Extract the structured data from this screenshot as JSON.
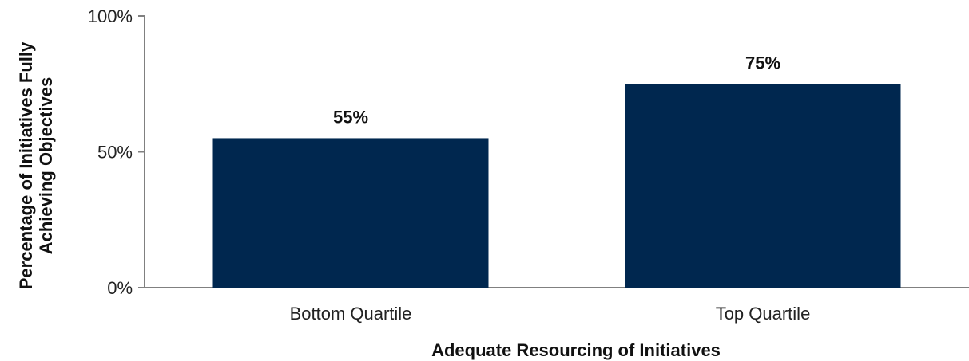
{
  "chart_data": {
    "type": "bar",
    "title": "",
    "xlabel": "Adequate Resourcing of Initiatives",
    "ylabel_lines": [
      "Percentage of Initiatives Fully",
      "Achieving Objectives"
    ],
    "categories": [
      "Bottom Quartile",
      "Top Quartile"
    ],
    "values": [
      55,
      75
    ],
    "data_labels": [
      "55%",
      "75%"
    ],
    "ylim": [
      0,
      100
    ],
    "y_ticks": [
      0,
      50,
      100
    ],
    "y_tick_labels": [
      "0%",
      "50%",
      "100%"
    ],
    "grid": false,
    "legend": "none",
    "bar_color": "#00274f",
    "axis_color": "#808080"
  }
}
